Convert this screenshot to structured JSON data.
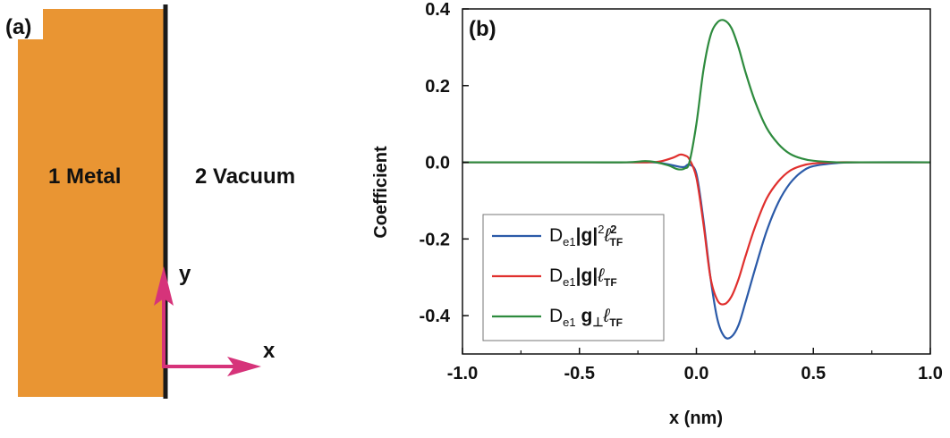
{
  "panel_a": {
    "label": "(a)",
    "region_1": "1 Metal",
    "region_2": "2 Vacuum",
    "axis_y": "y",
    "axis_x": "x",
    "colors": {
      "metal": "#e99533",
      "interface": "#1a1a1a",
      "arrows": "#d6337a"
    }
  },
  "chart_data": {
    "type": "line",
    "panel_label": "(b)",
    "xlabel": "x (nm)",
    "ylabel": "Coefficient",
    "xlim": [
      -1.0,
      1.0
    ],
    "ylim": [
      -0.5,
      0.4
    ],
    "xticks": [
      -1.0,
      -0.5,
      0.0,
      0.5,
      1.0
    ],
    "xtick_labels": [
      "-1.0",
      "-0.5",
      "0.0",
      "0.5",
      "1.0"
    ],
    "yticks": [
      -0.4,
      -0.2,
      0.0,
      0.2,
      0.4
    ],
    "ytick_labels": [
      "-0.4",
      "-0.2",
      "0.0",
      "0.2",
      "0.4"
    ],
    "grid": false,
    "legend_position": "bottom-left",
    "series": [
      {
        "name": "De1|g|²ℓTF²",
        "legend": {
          "main": "D",
          "sub": "e1",
          "mid": "|g|",
          "sup": "2",
          "ell": "ℓ",
          "ell_sup": "2",
          "ell_sub": "TF"
        },
        "color": "#2b5aa8",
        "x": [
          -1.0,
          -0.5,
          -0.3,
          -0.2,
          -0.15,
          -0.1,
          -0.07,
          -0.05,
          -0.03,
          0.0,
          0.03,
          0.06,
          0.09,
          0.12,
          0.15,
          0.18,
          0.21,
          0.25,
          0.3,
          0.35,
          0.4,
          0.45,
          0.5,
          0.6,
          0.7,
          1.0
        ],
        "y": [
          0.0,
          0.0,
          0.0,
          0.0,
          -0.002,
          -0.008,
          -0.012,
          -0.012,
          -0.006,
          -0.03,
          -0.15,
          -0.3,
          -0.41,
          -0.455,
          -0.455,
          -0.425,
          -0.365,
          -0.28,
          -0.18,
          -0.105,
          -0.055,
          -0.025,
          -0.01,
          -0.002,
          0.0,
          0.0
        ]
      },
      {
        "name": "De1|g|ℓTF",
        "legend": {
          "main": "D",
          "sub": "e1",
          "mid": "|g|",
          "ell": "ℓ",
          "ell_sub": "TF"
        },
        "color": "#e0302e",
        "x": [
          -1.0,
          -0.5,
          -0.3,
          -0.2,
          -0.15,
          -0.1,
          -0.07,
          -0.05,
          -0.03,
          0.0,
          0.03,
          0.06,
          0.09,
          0.12,
          0.15,
          0.18,
          0.21,
          0.25,
          0.3,
          0.35,
          0.4,
          0.45,
          0.5,
          0.6,
          0.7,
          1.0
        ],
        "y": [
          0.0,
          0.0,
          0.0,
          0.0,
          0.003,
          0.012,
          0.02,
          0.018,
          0.008,
          -0.04,
          -0.16,
          -0.3,
          -0.36,
          -0.37,
          -0.35,
          -0.305,
          -0.245,
          -0.17,
          -0.095,
          -0.05,
          -0.022,
          -0.009,
          -0.003,
          0.0,
          0.0,
          0.0
        ]
      },
      {
        "name": "De1 g⊥ℓTF",
        "legend": {
          "main": "D",
          "sub": "e1",
          "mid": " g",
          "mid_sub": "⊥",
          "ell": "ℓ",
          "ell_sub": "TF"
        },
        "color": "#2e8b3e",
        "x": [
          -1.0,
          -0.5,
          -0.3,
          -0.22,
          -0.18,
          -0.12,
          -0.08,
          -0.05,
          -0.03,
          0.0,
          0.03,
          0.06,
          0.09,
          0.12,
          0.15,
          0.18,
          0.21,
          0.25,
          0.3,
          0.35,
          0.4,
          0.45,
          0.5,
          0.6,
          0.7,
          1.0
        ],
        "y": [
          0.0,
          0.0,
          0.0,
          0.003,
          0.001,
          -0.008,
          -0.018,
          -0.016,
          0.0,
          0.1,
          0.24,
          0.33,
          0.365,
          0.37,
          0.35,
          0.3,
          0.235,
          0.16,
          0.09,
          0.048,
          0.022,
          0.01,
          0.004,
          0.0,
          0.0,
          0.0
        ]
      }
    ]
  }
}
